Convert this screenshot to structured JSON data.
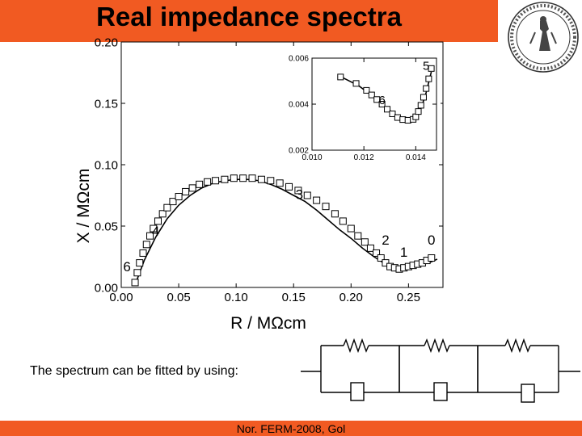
{
  "slide": {
    "title": "Real impedance spectra",
    "caption": "The spectrum can be fitted by using:",
    "footer": "Nor. FERM-2008, Gol",
    "accent_color": "#f15a22",
    "seal_icon": "university-seal-icon",
    "circuit_icon": "three-rc-elements-circuit-icon"
  },
  "chart_data": {
    "type": "scatter",
    "xlabel": "R / MΩcm",
    "ylabel": "X / MΩcm",
    "xlim": [
      0,
      0.28
    ],
    "ylim": [
      0,
      0.2
    ],
    "xticks": [
      "0.00",
      "0.05",
      "0.10",
      "0.15",
      "0.20",
      "0.25"
    ],
    "yticks": [
      "0.00",
      "0.05",
      "0.10",
      "0.15",
      "0.20"
    ],
    "annotations": [
      {
        "text": "6",
        "x": 0.005,
        "y": 0.013
      },
      {
        "text": "4",
        "x": 0.03,
        "y": 0.042
      },
      {
        "text": "3",
        "x": 0.155,
        "y": 0.072
      },
      {
        "text": "2",
        "x": 0.23,
        "y": 0.035
      },
      {
        "text": "1",
        "x": 0.246,
        "y": 0.025
      },
      {
        "text": "0",
        "x": 0.27,
        "y": 0.035
      }
    ],
    "series": [
      {
        "marker": "square",
        "x": [
          0.012,
          0.014,
          0.016,
          0.019,
          0.022,
          0.025,
          0.028,
          0.032,
          0.036,
          0.04,
          0.045,
          0.05,
          0.056,
          0.062,
          0.068,
          0.075,
          0.082,
          0.09,
          0.098,
          0.106,
          0.114,
          0.122,
          0.13,
          0.138,
          0.146,
          0.154,
          0.162,
          0.17,
          0.178,
          0.186,
          0.193,
          0.2,
          0.206,
          0.212,
          0.217,
          0.222,
          0.226,
          0.23,
          0.234,
          0.238,
          0.242,
          0.246,
          0.25,
          0.254,
          0.258,
          0.262,
          0.266,
          0.27
        ],
        "y": [
          0.004,
          0.012,
          0.02,
          0.028,
          0.035,
          0.042,
          0.048,
          0.054,
          0.06,
          0.065,
          0.07,
          0.074,
          0.078,
          0.081,
          0.084,
          0.086,
          0.087,
          0.088,
          0.089,
          0.089,
          0.089,
          0.088,
          0.087,
          0.085,
          0.082,
          0.079,
          0.075,
          0.071,
          0.066,
          0.06,
          0.054,
          0.048,
          0.042,
          0.037,
          0.032,
          0.028,
          0.024,
          0.02,
          0.017,
          0.016,
          0.015,
          0.016,
          0.017,
          0.018,
          0.019,
          0.02,
          0.022,
          0.024
        ]
      }
    ],
    "fit_curve": {
      "x": [
        0.012,
        0.02,
        0.03,
        0.04,
        0.05,
        0.06,
        0.07,
        0.08,
        0.09,
        0.1,
        0.11,
        0.12,
        0.13,
        0.14,
        0.15,
        0.16,
        0.17,
        0.18,
        0.19,
        0.2,
        0.21,
        0.22,
        0.23,
        0.24,
        0.25,
        0.26,
        0.27,
        0.275
      ],
      "y": [
        0.002,
        0.022,
        0.041,
        0.056,
        0.067,
        0.075,
        0.081,
        0.085,
        0.087,
        0.088,
        0.088,
        0.087,
        0.084,
        0.08,
        0.075,
        0.07,
        0.063,
        0.055,
        0.047,
        0.04,
        0.032,
        0.025,
        0.019,
        0.016,
        0.016,
        0.018,
        0.021,
        0.023
      ]
    },
    "inset": {
      "xlim": [
        0.01,
        0.0148
      ],
      "ylim": [
        0.002,
        0.006
      ],
      "xticks": [
        "0.010",
        "0.012",
        "0.014"
      ],
      "yticks": [
        "0.002",
        "0.004",
        "0.006"
      ],
      "annotations": [
        {
          "text": "5",
          "x": 0.0144,
          "y": 0.0055
        },
        {
          "text": "6",
          "x": 0.0127,
          "y": 0.004
        }
      ],
      "x": [
        0.0111,
        0.0117,
        0.0121,
        0.0123,
        0.0125,
        0.0127,
        0.0129,
        0.0131,
        0.0133,
        0.0135,
        0.0137,
        0.0139,
        0.014,
        0.0141,
        0.0142,
        0.0143,
        0.0144,
        0.0145,
        0.0146
      ],
      "y": [
        0.00518,
        0.0049,
        0.0046,
        0.0044,
        0.0042,
        0.004,
        0.00378,
        0.00358,
        0.00342,
        0.00333,
        0.0033,
        0.00334,
        0.00345,
        0.00368,
        0.00395,
        0.0043,
        0.00468,
        0.0051,
        0.00555
      ],
      "fit_x": [
        0.0111,
        0.0118,
        0.0124,
        0.0129,
        0.0133,
        0.0136,
        0.0138,
        0.014,
        0.0142,
        0.0144,
        0.0146
      ],
      "fit_y": [
        0.0052,
        0.0048,
        0.0043,
        0.0038,
        0.00348,
        0.00333,
        0.00331,
        0.00342,
        0.0038,
        0.0045,
        0.0054
      ]
    }
  }
}
